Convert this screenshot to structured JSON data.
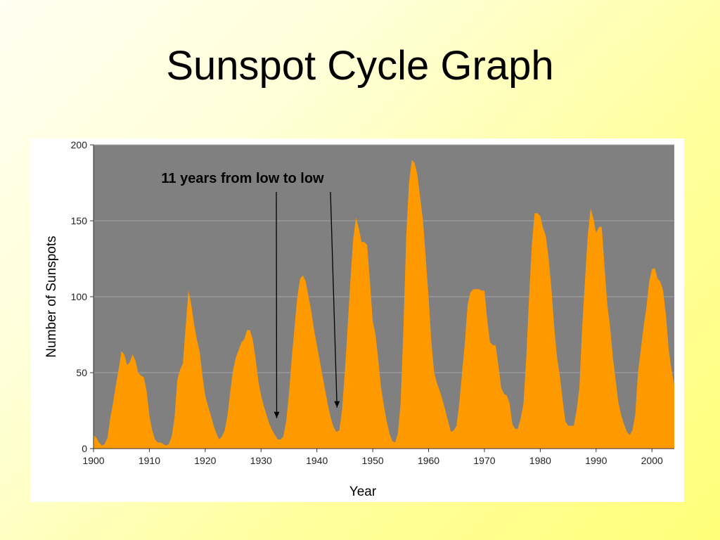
{
  "title": "Sunspot Cycle Graph",
  "chart_data": {
    "type": "area",
    "xlabel": "Year",
    "ylabel": "Number of Sunspots",
    "xlim": [
      1900,
      2004
    ],
    "ylim": [
      0,
      200
    ],
    "x_ticks": [
      "1900",
      "1910",
      "1920",
      "1930",
      "1940",
      "1950",
      "1960",
      "1970",
      "1980",
      "1990",
      "2000"
    ],
    "y_ticks": [
      "0",
      "50",
      "100",
      "150",
      "200"
    ],
    "grid": true,
    "colors": {
      "plot_background": "#808080",
      "area_fill": "#ff9900",
      "gridline": "#a6a6a6"
    },
    "annotations": [
      {
        "text": "11 years from low to low",
        "arrows": [
          {
            "x": 1932.8,
            "y": 20
          },
          {
            "x": 1943.6,
            "y": 27
          }
        ]
      }
    ],
    "series": [
      {
        "points": [
          [
            1900,
            9
          ],
          [
            1900.5,
            7
          ],
          [
            1901,
            4
          ],
          [
            1901.5,
            2
          ],
          [
            1902,
            3
          ],
          [
            1902.5,
            7
          ],
          [
            1903,
            20
          ],
          [
            1903.5,
            30
          ],
          [
            1904,
            42
          ],
          [
            1904.5,
            52
          ],
          [
            1905,
            64
          ],
          [
            1905.5,
            62
          ],
          [
            1906,
            55
          ],
          [
            1906.5,
            57
          ],
          [
            1907,
            62
          ],
          [
            1907.5,
            58
          ],
          [
            1908,
            50
          ],
          [
            1908.5,
            48
          ],
          [
            1909,
            47
          ],
          [
            1909.5,
            38
          ],
          [
            1910,
            22
          ],
          [
            1910.5,
            12
          ],
          [
            1911,
            6
          ],
          [
            1911.5,
            4
          ],
          [
            1912,
            4
          ],
          [
            1912.5,
            3
          ],
          [
            1913,
            2
          ],
          [
            1913.5,
            3
          ],
          [
            1914,
            8
          ],
          [
            1914.5,
            20
          ],
          [
            1915,
            45
          ],
          [
            1915.5,
            52
          ],
          [
            1916,
            56
          ],
          [
            1916.5,
            80
          ],
          [
            1917,
            104
          ],
          [
            1917.5,
            95
          ],
          [
            1918,
            82
          ],
          [
            1918.5,
            72
          ],
          [
            1919,
            64
          ],
          [
            1919.5,
            48
          ],
          [
            1920,
            35
          ],
          [
            1920.5,
            28
          ],
          [
            1921,
            22
          ],
          [
            1921.5,
            15
          ],
          [
            1922,
            10
          ],
          [
            1922.5,
            6
          ],
          [
            1923,
            8
          ],
          [
            1923.5,
            12
          ],
          [
            1924,
            22
          ],
          [
            1924.5,
            38
          ],
          [
            1925,
            52
          ],
          [
            1925.5,
            60
          ],
          [
            1926,
            65
          ],
          [
            1926.5,
            70
          ],
          [
            1927,
            72
          ],
          [
            1927.5,
            78
          ],
          [
            1928,
            78
          ],
          [
            1928.5,
            72
          ],
          [
            1929,
            60
          ],
          [
            1929.5,
            45
          ],
          [
            1930,
            35
          ],
          [
            1930.5,
            28
          ],
          [
            1931,
            22
          ],
          [
            1931.5,
            16
          ],
          [
            1932,
            12
          ],
          [
            1932.5,
            9
          ],
          [
            1933,
            6
          ],
          [
            1933.5,
            6
          ],
          [
            1934,
            8
          ],
          [
            1934.5,
            18
          ],
          [
            1935,
            36
          ],
          [
            1935.5,
            60
          ],
          [
            1936,
            80
          ],
          [
            1936.5,
            100
          ],
          [
            1937,
            112
          ],
          [
            1937.5,
            114
          ],
          [
            1938,
            110
          ],
          [
            1938.5,
            100
          ],
          [
            1939,
            90
          ],
          [
            1939.5,
            78
          ],
          [
            1940,
            68
          ],
          [
            1940.5,
            58
          ],
          [
            1941,
            48
          ],
          [
            1941.5,
            38
          ],
          [
            1942,
            28
          ],
          [
            1942.5,
            20
          ],
          [
            1943,
            14
          ],
          [
            1943.5,
            11
          ],
          [
            1944,
            12
          ],
          [
            1944.5,
            25
          ],
          [
            1945,
            50
          ],
          [
            1945.5,
            80
          ],
          [
            1946,
            110
          ],
          [
            1946.5,
            138
          ],
          [
            1947,
            152
          ],
          [
            1947.5,
            145
          ],
          [
            1948,
            136
          ],
          [
            1948.5,
            136
          ],
          [
            1949,
            134
          ],
          [
            1949.5,
            110
          ],
          [
            1950,
            84
          ],
          [
            1950.5,
            75
          ],
          [
            1951,
            58
          ],
          [
            1951.5,
            40
          ],
          [
            1952,
            28
          ],
          [
            1952.5,
            18
          ],
          [
            1953,
            10
          ],
          [
            1953.5,
            5
          ],
          [
            1954,
            4
          ],
          [
            1954.5,
            10
          ],
          [
            1955,
            30
          ],
          [
            1955.5,
            80
          ],
          [
            1956,
            140
          ],
          [
            1956.5,
            175
          ],
          [
            1957,
            190
          ],
          [
            1957.5,
            188
          ],
          [
            1958,
            180
          ],
          [
            1958.5,
            165
          ],
          [
            1959,
            150
          ],
          [
            1959.5,
            125
          ],
          [
            1960,
            100
          ],
          [
            1960.5,
            70
          ],
          [
            1961,
            50
          ],
          [
            1961.5,
            43
          ],
          [
            1962,
            38
          ],
          [
            1962.5,
            32
          ],
          [
            1963,
            25
          ],
          [
            1963.5,
            18
          ],
          [
            1964,
            11
          ],
          [
            1964.5,
            12
          ],
          [
            1965,
            15
          ],
          [
            1965.5,
            30
          ],
          [
            1966,
            50
          ],
          [
            1966.5,
            70
          ],
          [
            1967,
            95
          ],
          [
            1967.5,
            103
          ],
          [
            1968,
            105
          ],
          [
            1968.5,
            105
          ],
          [
            1969,
            105
          ],
          [
            1969.5,
            104
          ],
          [
            1970,
            104
          ],
          [
            1970.5,
            85
          ],
          [
            1971,
            70
          ],
          [
            1971.5,
            68
          ],
          [
            1972,
            68
          ],
          [
            1972.5,
            55
          ],
          [
            1973,
            40
          ],
          [
            1973.5,
            36
          ],
          [
            1974,
            35
          ],
          [
            1974.5,
            30
          ],
          [
            1975,
            16
          ],
          [
            1975.5,
            13
          ],
          [
            1976,
            13
          ],
          [
            1976.5,
            20
          ],
          [
            1977,
            30
          ],
          [
            1977.5,
            60
          ],
          [
            1978,
            100
          ],
          [
            1978.5,
            135
          ],
          [
            1979,
            155
          ],
          [
            1979.5,
            155
          ],
          [
            1980,
            153
          ],
          [
            1980.5,
            145
          ],
          [
            1981,
            140
          ],
          [
            1981.5,
            125
          ],
          [
            1982,
            105
          ],
          [
            1982.5,
            80
          ],
          [
            1983,
            60
          ],
          [
            1983.5,
            48
          ],
          [
            1984,
            32
          ],
          [
            1984.5,
            18
          ],
          [
            1985,
            15
          ],
          [
            1985.5,
            15
          ],
          [
            1986,
            15
          ],
          [
            1986.5,
            25
          ],
          [
            1987,
            40
          ],
          [
            1987.5,
            80
          ],
          [
            1988,
            110
          ],
          [
            1988.5,
            140
          ],
          [
            1989,
            158
          ],
          [
            1989.5,
            152
          ],
          [
            1990,
            142
          ],
          [
            1990.5,
            146
          ],
          [
            1991,
            146
          ],
          [
            1991.5,
            120
          ],
          [
            1992,
            95
          ],
          [
            1992.5,
            80
          ],
          [
            1993,
            60
          ],
          [
            1993.5,
            45
          ],
          [
            1994,
            30
          ],
          [
            1994.5,
            22
          ],
          [
            1995,
            16
          ],
          [
            1995.5,
            11
          ],
          [
            1996,
            9
          ],
          [
            1996.5,
            12
          ],
          [
            1997,
            22
          ],
          [
            1997.5,
            50
          ],
          [
            1998,
            65
          ],
          [
            1998.5,
            80
          ],
          [
            1999,
            93
          ],
          [
            1999.5,
            110
          ],
          [
            2000,
            118
          ],
          [
            2000.5,
            119
          ],
          [
            2001,
            112
          ],
          [
            2001.5,
            110
          ],
          [
            2002,
            104
          ],
          [
            2002.5,
            88
          ],
          [
            2003,
            65
          ],
          [
            2003.5,
            52
          ],
          [
            2004,
            42
          ]
        ]
      }
    ]
  }
}
